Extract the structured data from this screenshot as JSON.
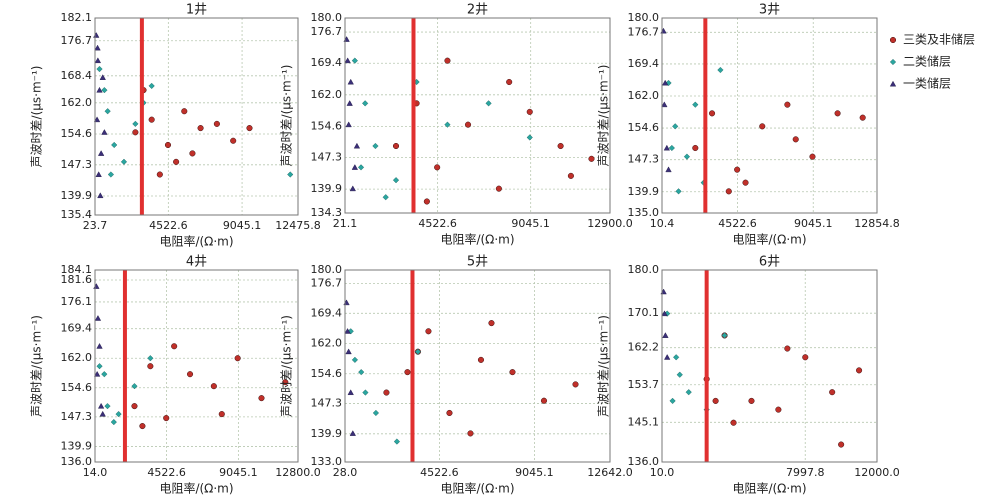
{
  "legend": [
    {
      "name": "三类及非储层",
      "color": "#c0302a",
      "marker": "circle"
    },
    {
      "name": "二类储层",
      "color": "#2aa6a0",
      "marker": "diamond"
    },
    {
      "name": "一类储层",
      "color": "#3b2f78",
      "marker": "triangle"
    }
  ],
  "chart_data": [
    {
      "type": "scatter",
      "title": "1井",
      "x_label": "电阻率/(Ω·m)",
      "y_label": "声波时差/(μs·m⁻¹)",
      "xlim": [
        23.7,
        12475.8
      ],
      "ylim": [
        135.4,
        182.1
      ],
      "xticks": [
        23.7,
        4522.6,
        9045.1,
        12475.8
      ],
      "yticks": [
        135.4,
        139.9,
        147.3,
        154.6,
        {
          "value": 162,
          "label": "162.0"
        },
        168.4,
        176.7,
        182.1
      ],
      "grid": true,
      "vline": 2900,
      "vline_color": "#e03030",
      "series": [
        {
          "x": [
            2500,
            3500,
            4500,
            5500,
            6500,
            7500,
            8500,
            9500,
            4000,
            5000,
            3000,
            6000
          ],
          "values": [
            155,
            158,
            152,
            160,
            156,
            157,
            153,
            156,
            145,
            148,
            165,
            150
          ]
        },
        {
          "x": [
            300,
            800,
            1200,
            1800,
            600,
            2500,
            3000,
            3500,
            1000,
            12000
          ],
          "values": [
            170,
            160,
            152,
            148,
            165,
            157,
            162,
            166,
            145,
            145
          ]
        },
        {
          "x": [
            100,
            200,
            300,
            150,
            400,
            250,
            350,
            500,
            180,
            600
          ],
          "values": [
            178,
            172,
            165,
            158,
            150,
            145,
            140,
            168,
            175,
            155
          ]
        }
      ]
    },
    {
      "type": "scatter",
      "title": "2井",
      "x_label": "电阻率/(Ω·m)",
      "y_label": "声波时差/(μs·m⁻¹)",
      "xlim": [
        21.1,
        12900
      ],
      "ylim": [
        134.3,
        180
      ],
      "xticks": [
        21.1,
        4522.6,
        9045.1,
        {
          "value": 12900,
          "label": "12900.0"
        }
      ],
      "yticks": [
        134.3,
        139.9,
        147.3,
        154.6,
        {
          "value": 162,
          "label": "162.0"
        },
        169.4,
        176.7,
        {
          "value": 180,
          "label": "180.0"
        }
      ],
      "grid": true,
      "vline": 3350,
      "vline_color": "#e03030",
      "series": [
        {
          "x": [
            2500,
            3500,
            4500,
            6000,
            7500,
            9000,
            10500,
            12000,
            5000,
            8000,
            11000,
            4000
          ],
          "values": [
            150,
            160,
            145,
            155,
            140,
            158,
            150,
            147,
            170,
            165,
            143,
            137
          ]
        },
        {
          "x": [
            500,
            1000,
            1500,
            2500,
            3500,
            5000,
            7000,
            9000,
            2000,
            800
          ],
          "values": [
            170,
            160,
            150,
            142,
            165,
            155,
            160,
            152,
            138,
            145
          ]
        },
        {
          "x": [
            100,
            300,
            200,
            500,
            400,
            150,
            600,
            250
          ],
          "values": [
            175,
            165,
            155,
            145,
            140,
            170,
            150,
            160
          ]
        }
      ]
    },
    {
      "type": "scatter",
      "title": "3井",
      "x_label": "电阻率/(Ω·m)",
      "y_label": "声波时差/(μs·m⁻¹)",
      "xlim": [
        10.4,
        12854.8
      ],
      "ylim": [
        135,
        180
      ],
      "xticks": [
        10.4,
        4522.6,
        9045.1,
        12854.8
      ],
      "yticks": [
        {
          "value": 135,
          "label": "135.0"
        },
        139.9,
        147.3,
        154.6,
        {
          "value": 162,
          "label": "162.0"
        },
        169.4,
        176.7,
        {
          "value": 180,
          "label": "180.0"
        }
      ],
      "grid": true,
      "vline": 2600,
      "vline_color": "#e03030",
      "series": [
        {
          "x": [
            2000,
            3000,
            4500,
            6000,
            7500,
            9000,
            10500,
            12000,
            5000,
            4000,
            8000
          ],
          "values": [
            150,
            158,
            145,
            155,
            160,
            148,
            158,
            157,
            142,
            140,
            152
          ]
        },
        {
          "x": [
            400,
            800,
            1500,
            2500,
            3500,
            1000,
            2000,
            600
          ],
          "values": [
            165,
            155,
            148,
            142,
            168,
            140,
            160,
            150
          ]
        },
        {
          "x": [
            100,
            200,
            300,
            150,
            400
          ],
          "values": [
            177,
            165,
            150,
            160,
            145
          ]
        }
      ]
    },
    {
      "type": "scatter",
      "title": "4井",
      "x_label": "电阻率/(Ω·m)",
      "y_label": "声波时差/(μs·m⁻¹)",
      "xlim": [
        14,
        12800
      ],
      "ylim": [
        136,
        184.1
      ],
      "xticks": [
        {
          "value": 14,
          "label": "14.0"
        },
        4522.6,
        9045.1,
        {
          "value": 12800,
          "label": "12800.0"
        }
      ],
      "yticks": [
        {
          "value": 136,
          "label": "136.0"
        },
        139.9,
        147.3,
        154.6,
        {
          "value": 162,
          "label": "162.0"
        },
        169.4,
        176.1,
        181.6,
        184.1
      ],
      "grid": true,
      "vline": 1900,
      "vline_color": "#e03030",
      "series": [
        {
          "x": [
            2500,
            3500,
            4500,
            6000,
            7500,
            9000,
            10500,
            12000,
            5000,
            8000,
            3000
          ],
          "values": [
            150,
            160,
            147,
            158,
            155,
            162,
            152,
            156,
            165,
            148,
            145
          ]
        },
        {
          "x": [
            300,
            800,
            1500,
            2500,
            3500,
            1200,
            600
          ],
          "values": [
            160,
            150,
            148,
            155,
            162,
            146,
            158
          ]
        },
        {
          "x": [
            100,
            200,
            300,
            150,
            400,
            500
          ],
          "values": [
            180,
            172,
            165,
            158,
            150,
            148
          ]
        }
      ]
    },
    {
      "type": "scatter",
      "title": "5井",
      "x_label": "电阻率/(Ω·m)",
      "y_label": "声波时差/(μs·m⁻¹)",
      "xlim": [
        28,
        12642
      ],
      "ylim": [
        133,
        180
      ],
      "xticks": [
        {
          "value": 28,
          "label": "28.0"
        },
        4522.6,
        9045.1,
        {
          "value": 12642,
          "label": "12642.0"
        }
      ],
      "yticks": [
        {
          "value": 133,
          "label": "133.0"
        },
        139.9,
        147.3,
        154.6,
        {
          "value": 162,
          "label": "162.0"
        },
        169.4,
        176.7,
        {
          "value": 180,
          "label": "180.0"
        }
      ],
      "grid": true,
      "vline": 3240,
      "vline_color": "#e03030",
      "series": [
        {
          "x": [
            2000,
            3500,
            5000,
            6500,
            8000,
            9500,
            11000,
            4000,
            6000,
            7000,
            3000
          ],
          "values": [
            150,
            160,
            145,
            158,
            155,
            148,
            152,
            165,
            140,
            167,
            155
          ]
        },
        {
          "x": [
            300,
            800,
            1500,
            2500,
            3500,
            1000,
            500
          ],
          "values": [
            165,
            155,
            145,
            138,
            160,
            150,
            158
          ]
        },
        {
          "x": [
            100,
            200,
            300,
            400,
            150
          ],
          "values": [
            172,
            160,
            150,
            140,
            165
          ]
        }
      ]
    },
    {
      "type": "scatter",
      "title": "6井",
      "x_label": "电阻率/(Ω·m)",
      "y_label": "声波时差/(μs·m⁻¹)",
      "xlim": [
        10,
        12000
      ],
      "ylim": [
        136,
        180
      ],
      "xticks": [
        {
          "value": 10,
          "label": "10.0"
        },
        7997.8,
        {
          "value": 12000,
          "label": "12000.0"
        }
      ],
      "yticks": [
        {
          "value": 136,
          "label": "136.0"
        },
        145.1,
        153.7,
        162.2,
        170.1,
        {
          "value": 180,
          "label": "180.0"
        }
      ],
      "grid": true,
      "vline": 2500,
      "vline_color": "#e03030",
      "series": [
        {
          "x": [
            2500,
            3500,
            5000,
            6500,
            8000,
            9500,
            11000,
            4000,
            7000,
            10000,
            3000
          ],
          "values": [
            155,
            165,
            150,
            148,
            160,
            152,
            157,
            145,
            162,
            140,
            150
          ]
        },
        {
          "x": [
            300,
            800,
            1500,
            2500,
            1000,
            3500,
            600
          ],
          "values": [
            170,
            160,
            152,
            148,
            156,
            165,
            150
          ]
        },
        {
          "x": [
            100,
            200,
            300,
            150
          ],
          "values": [
            175,
            165,
            160,
            170
          ]
        }
      ]
    }
  ]
}
